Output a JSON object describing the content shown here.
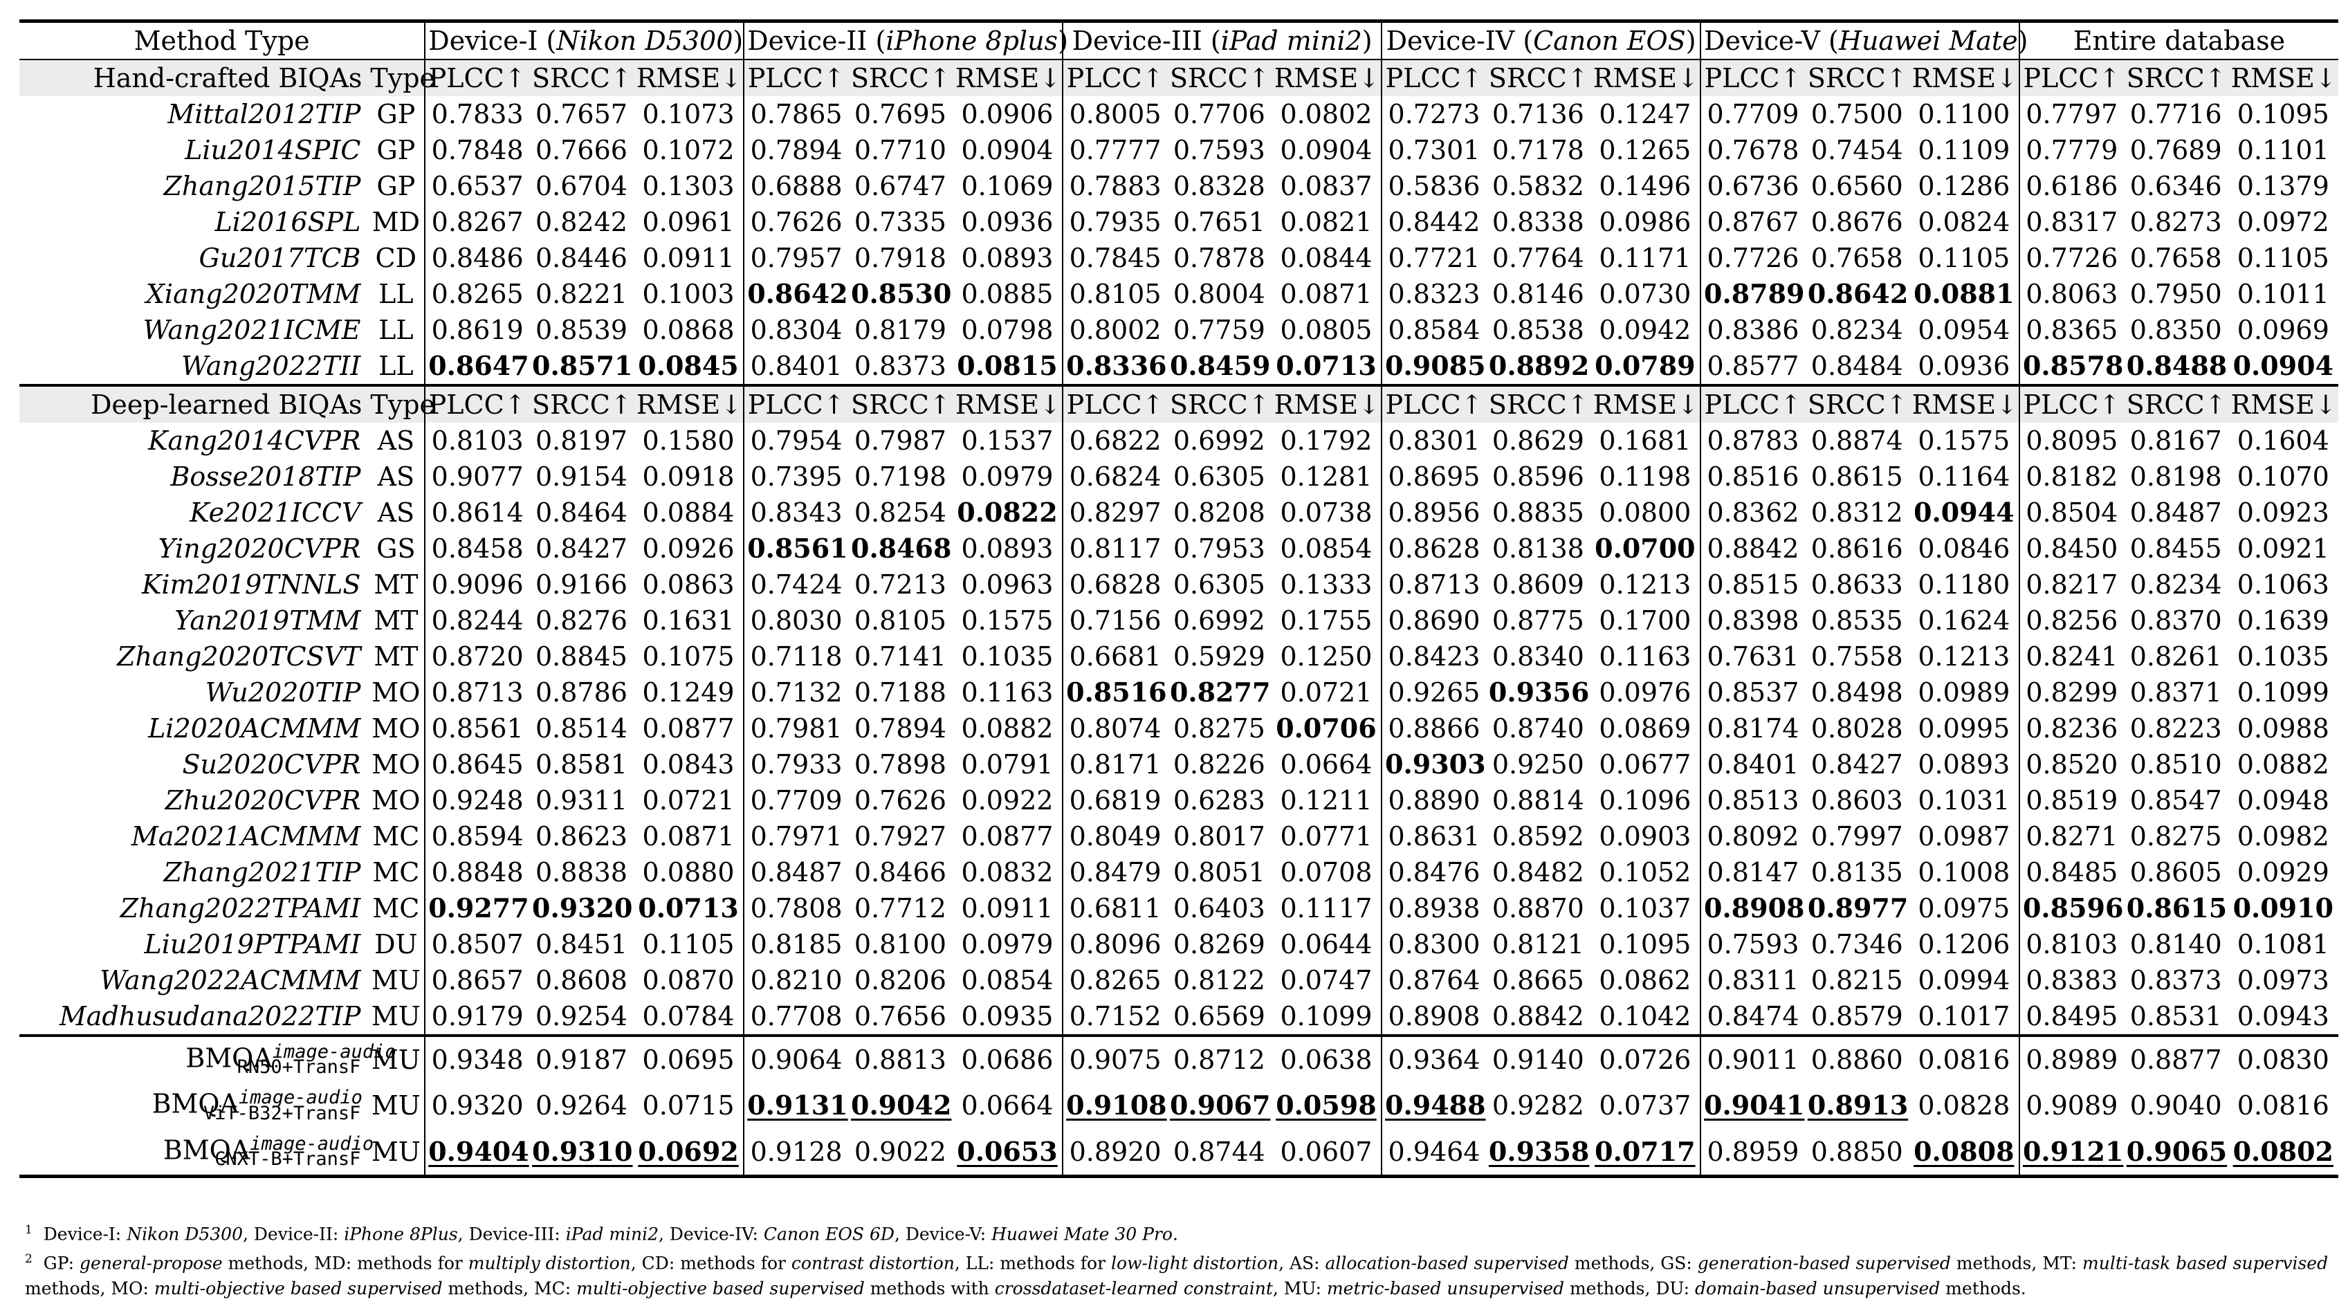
{
  "header": {
    "method_type": "Method Type",
    "devices": [
      {
        "label": "Device-I",
        "model": "Nikon D5300"
      },
      {
        "label": "Device-II",
        "model": "iPhone 8plus"
      },
      {
        "label": "Device-III",
        "model": "iPad mini2"
      },
      {
        "label": "Device-IV",
        "model": "Canon EOS"
      },
      {
        "label": "Device-V",
        "model": "Huawei Mate"
      }
    ],
    "entire": "Entire database"
  },
  "metric_labels": [
    "PLCC↑",
    "SRCC↑",
    "RMSE↓"
  ],
  "type_label": "Type",
  "sections": [
    {
      "title": "Hand-crafted BIQAs",
      "rows": [
        {
          "name": "Mittal2012TIP",
          "type": "GP",
          "vals": [
            "0.7833",
            "0.7657",
            "0.1073",
            "0.7865",
            "0.7695",
            "0.0906",
            "0.8005",
            "0.7706",
            "0.0802",
            "0.7273",
            "0.7136",
            "0.1247",
            "0.7709",
            "0.7500",
            "0.1100",
            "0.7797",
            "0.7716",
            "0.1095"
          ],
          "bold": [],
          "ul": []
        },
        {
          "name": "Liu2014SPIC",
          "type": "GP",
          "vals": [
            "0.7848",
            "0.7666",
            "0.1072",
            "0.7894",
            "0.7710",
            "0.0904",
            "0.7777",
            "0.7593",
            "0.0904",
            "0.7301",
            "0.7178",
            "0.1265",
            "0.7678",
            "0.7454",
            "0.1109",
            "0.7779",
            "0.7689",
            "0.1101"
          ],
          "bold": [],
          "ul": []
        },
        {
          "name": "Zhang2015TIP",
          "type": "GP",
          "vals": [
            "0.6537",
            "0.6704",
            "0.1303",
            "0.6888",
            "0.6747",
            "0.1069",
            "0.7883",
            "0.8328",
            "0.0837",
            "0.5836",
            "0.5832",
            "0.1496",
            "0.6736",
            "0.6560",
            "0.1286",
            "0.6186",
            "0.6346",
            "0.1379"
          ],
          "bold": [],
          "ul": []
        },
        {
          "name": "Li2016SPL",
          "type": "MD",
          "vals": [
            "0.8267",
            "0.8242",
            "0.0961",
            "0.7626",
            "0.7335",
            "0.0936",
            "0.7935",
            "0.7651",
            "0.0821",
            "0.8442",
            "0.8338",
            "0.0986",
            "0.8767",
            "0.8676",
            "0.0824",
            "0.8317",
            "0.8273",
            "0.0972"
          ],
          "bold": [],
          "ul": []
        },
        {
          "name": "Gu2017TCB",
          "type": "CD",
          "vals": [
            "0.8486",
            "0.8446",
            "0.0911",
            "0.7957",
            "0.7918",
            "0.0893",
            "0.7845",
            "0.7878",
            "0.0844",
            "0.7721",
            "0.7764",
            "0.1171",
            "0.7726",
            "0.7658",
            "0.1105",
            "0.7726",
            "0.7658",
            "0.1105"
          ],
          "bold": [],
          "ul": []
        },
        {
          "name": "Xiang2020TMM",
          "type": "LL",
          "vals": [
            "0.8265",
            "0.8221",
            "0.1003",
            "0.8642",
            "0.8530",
            "0.0885",
            "0.8105",
            "0.8004",
            "0.0871",
            "0.8323",
            "0.8146",
            "0.0730",
            "0.8789",
            "0.8642",
            "0.0881",
            "0.8063",
            "0.7950",
            "0.1011"
          ],
          "bold": [
            3,
            4,
            12,
            13,
            14
          ],
          "ul": []
        },
        {
          "name": "Wang2021ICME",
          "type": "LL",
          "vals": [
            "0.8619",
            "0.8539",
            "0.0868",
            "0.8304",
            "0.8179",
            "0.0798",
            "0.8002",
            "0.7759",
            "0.0805",
            "0.8584",
            "0.8538",
            "0.0942",
            "0.8386",
            "0.8234",
            "0.0954",
            "0.8365",
            "0.8350",
            "0.0969"
          ],
          "bold": [],
          "ul": []
        },
        {
          "name": "Wang2022TII",
          "type": "LL",
          "vals": [
            "0.8647",
            "0.8571",
            "0.0845",
            "0.8401",
            "0.8373",
            "0.0815",
            "0.8336",
            "0.8459",
            "0.0713",
            "0.9085",
            "0.8892",
            "0.0789",
            "0.8577",
            "0.8484",
            "0.0936",
            "0.8578",
            "0.8488",
            "0.0904"
          ],
          "bold": [
            0,
            1,
            2,
            5,
            6,
            7,
            8,
            9,
            10,
            11,
            15,
            16,
            17
          ],
          "ul": []
        }
      ]
    },
    {
      "title": "Deep-learned BIQAs",
      "rows": [
        {
          "name": "Kang2014CVPR",
          "type": "AS",
          "vals": [
            "0.8103",
            "0.8197",
            "0.1580",
            "0.7954",
            "0.7987",
            "0.1537",
            "0.6822",
            "0.6992",
            "0.1792",
            "0.8301",
            "0.8629",
            "0.1681",
            "0.8783",
            "0.8874",
            "0.1575",
            "0.8095",
            "0.8167",
            "0.1604"
          ],
          "bold": [],
          "ul": []
        },
        {
          "name": "Bosse2018TIP",
          "type": "AS",
          "vals": [
            "0.9077",
            "0.9154",
            "0.0918",
            "0.7395",
            "0.7198",
            "0.0979",
            "0.6824",
            "0.6305",
            "0.1281",
            "0.8695",
            "0.8596",
            "0.1198",
            "0.8516",
            "0.8615",
            "0.1164",
            "0.8182",
            "0.8198",
            "0.1070"
          ],
          "bold": [],
          "ul": []
        },
        {
          "name": "Ke2021ICCV",
          "type": "AS",
          "vals": [
            "0.8614",
            "0.8464",
            "0.0884",
            "0.8343",
            "0.8254",
            "0.0822",
            "0.8297",
            "0.8208",
            "0.0738",
            "0.8956",
            "0.8835",
            "0.0800",
            "0.8362",
            "0.8312",
            "0.0944",
            "0.8504",
            "0.8487",
            "0.0923"
          ],
          "bold": [
            5,
            14
          ],
          "ul": []
        },
        {
          "name": "Ying2020CVPR",
          "type": "GS",
          "vals": [
            "0.8458",
            "0.8427",
            "0.0926",
            "0.8561",
            "0.8468",
            "0.0893",
            "0.8117",
            "0.7953",
            "0.0854",
            "0.8628",
            "0.8138",
            "0.0700",
            "0.8842",
            "0.8616",
            "0.0846",
            "0.8450",
            "0.8455",
            "0.0921"
          ],
          "bold": [
            3,
            4,
            11
          ],
          "ul": []
        },
        {
          "name": "Kim2019TNNLS",
          "type": "MT",
          "vals": [
            "0.9096",
            "0.9166",
            "0.0863",
            "0.7424",
            "0.7213",
            "0.0963",
            "0.6828",
            "0.6305",
            "0.1333",
            "0.8713",
            "0.8609",
            "0.1213",
            "0.8515",
            "0.8633",
            "0.1180",
            "0.8217",
            "0.8234",
            "0.1063"
          ],
          "bold": [],
          "ul": []
        },
        {
          "name": "Yan2019TMM",
          "type": "MT",
          "vals": [
            "0.8244",
            "0.8276",
            "0.1631",
            "0.8030",
            "0.8105",
            "0.1575",
            "0.7156",
            "0.6992",
            "0.1755",
            "0.8690",
            "0.8775",
            "0.1700",
            "0.8398",
            "0.8535",
            "0.1624",
            "0.8256",
            "0.8370",
            "0.1639"
          ],
          "bold": [],
          "ul": []
        },
        {
          "name": "Zhang2020TCSVT",
          "type": "MT",
          "vals": [
            "0.8720",
            "0.8845",
            "0.1075",
            "0.7118",
            "0.7141",
            "0.1035",
            "0.6681",
            "0.5929",
            "0.1250",
            "0.8423",
            "0.8340",
            "0.1163",
            "0.7631",
            "0.7558",
            "0.1213",
            "0.8241",
            "0.8261",
            "0.1035"
          ],
          "bold": [],
          "ul": []
        },
        {
          "name": "Wu2020TIP",
          "type": "MO",
          "vals": [
            "0.8713",
            "0.8786",
            "0.1249",
            "0.7132",
            "0.7188",
            "0.1163",
            "0.8516",
            "0.8277",
            "0.0721",
            "0.9265",
            "0.9356",
            "0.0976",
            "0.8537",
            "0.8498",
            "0.0989",
            "0.8299",
            "0.8371",
            "0.1099"
          ],
          "bold": [
            6,
            7,
            10
          ],
          "ul": []
        },
        {
          "name": "Li2020ACMMM",
          "type": "MO",
          "vals": [
            "0.8561",
            "0.8514",
            "0.0877",
            "0.7981",
            "0.7894",
            "0.0882",
            "0.8074",
            "0.8275",
            "0.0706",
            "0.8866",
            "0.8740",
            "0.0869",
            "0.8174",
            "0.8028",
            "0.0995",
            "0.8236",
            "0.8223",
            "0.0988"
          ],
          "bold": [
            8
          ],
          "ul": []
        },
        {
          "name": "Su2020CVPR",
          "type": "MO",
          "vals": [
            "0.8645",
            "0.8581",
            "0.0843",
            "0.7933",
            "0.7898",
            "0.0791",
            "0.8171",
            "0.8226",
            "0.0664",
            "0.9303",
            "0.9250",
            "0.0677",
            "0.8401",
            "0.8427",
            "0.0893",
            "0.8520",
            "0.8510",
            "0.0882"
          ],
          "bold": [
            9
          ],
          "ul": []
        },
        {
          "name": "Zhu2020CVPR",
          "type": "MO",
          "vals": [
            "0.9248",
            "0.9311",
            "0.0721",
            "0.7709",
            "0.7626",
            "0.0922",
            "0.6819",
            "0.6283",
            "0.1211",
            "0.8890",
            "0.8814",
            "0.1096",
            "0.8513",
            "0.8603",
            "0.1031",
            "0.8519",
            "0.8547",
            "0.0948"
          ],
          "bold": [],
          "ul": []
        },
        {
          "name": "Ma2021ACMMM",
          "type": "MC",
          "vals": [
            "0.8594",
            "0.8623",
            "0.0871",
            "0.7971",
            "0.7927",
            "0.0877",
            "0.8049",
            "0.8017",
            "0.0771",
            "0.8631",
            "0.8592",
            "0.0903",
            "0.8092",
            "0.7997",
            "0.0987",
            "0.8271",
            "0.8275",
            "0.0982"
          ],
          "bold": [],
          "ul": []
        },
        {
          "name": "Zhang2021TIP",
          "type": "MC",
          "vals": [
            "0.8848",
            "0.8838",
            "0.0880",
            "0.8487",
            "0.8466",
            "0.0832",
            "0.8479",
            "0.8051",
            "0.0708",
            "0.8476",
            "0.8482",
            "0.1052",
            "0.8147",
            "0.8135",
            "0.1008",
            "0.8485",
            "0.8605",
            "0.0929"
          ],
          "bold": [],
          "ul": []
        },
        {
          "name": "Zhang2022TPAMI",
          "type": "MC",
          "vals": [
            "0.9277",
            "0.9320",
            "0.0713",
            "0.7808",
            "0.7712",
            "0.0911",
            "0.6811",
            "0.6403",
            "0.1117",
            "0.8938",
            "0.8870",
            "0.1037",
            "0.8908",
            "0.8977",
            "0.0975",
            "0.8596",
            "0.8615",
            "0.0910"
          ],
          "bold": [
            0,
            1,
            2,
            12,
            13,
            15,
            16,
            17
          ],
          "ul": []
        },
        {
          "name": "Liu2019PTPAMI",
          "type": "DU",
          "vals": [
            "0.8507",
            "0.8451",
            "0.1105",
            "0.8185",
            "0.8100",
            "0.0979",
            "0.8096",
            "0.8269",
            "0.0644",
            "0.8300",
            "0.8121",
            "0.1095",
            "0.7593",
            "0.7346",
            "0.1206",
            "0.8103",
            "0.8140",
            "0.1081"
          ],
          "bold": [],
          "ul": []
        },
        {
          "name": "Wang2022ACMMM",
          "type": "MU",
          "vals": [
            "0.8657",
            "0.8608",
            "0.0870",
            "0.8210",
            "0.8206",
            "0.0854",
            "0.8265",
            "0.8122",
            "0.0747",
            "0.8764",
            "0.8665",
            "0.0862",
            "0.8311",
            "0.8215",
            "0.0994",
            "0.8383",
            "0.8373",
            "0.0973"
          ],
          "bold": [],
          "ul": []
        },
        {
          "name": "Madhusudana2022TIP",
          "type": "MU",
          "vals": [
            "0.9179",
            "0.9254",
            "0.0784",
            "0.7708",
            "0.7656",
            "0.0935",
            "0.7152",
            "0.6569",
            "0.1099",
            "0.8908",
            "0.8842",
            "0.1042",
            "0.8474",
            "0.8579",
            "0.1017",
            "0.8495",
            "0.8531",
            "0.0943"
          ],
          "bold": [],
          "ul": []
        }
      ]
    }
  ],
  "bmqa": {
    "base": "BMQA",
    "sup": "image-audio",
    "rows": [
      {
        "sub": "RN50+TransF",
        "type": "MU",
        "vals": [
          "0.9348",
          "0.9187",
          "0.0695",
          "0.9064",
          "0.8813",
          "0.0686",
          "0.9075",
          "0.8712",
          "0.0638",
          "0.9364",
          "0.9140",
          "0.0726",
          "0.9011",
          "0.8860",
          "0.0816",
          "0.8989",
          "0.8877",
          "0.0830"
        ],
        "bold": [],
        "ul": []
      },
      {
        "sub": "ViT-B32+TransF",
        "type": "MU",
        "vals": [
          "0.9320",
          "0.9264",
          "0.0715",
          "0.9131",
          "0.9042",
          "0.0664",
          "0.9108",
          "0.9067",
          "0.0598",
          "0.9488",
          "0.9282",
          "0.0737",
          "0.9041",
          "0.8913",
          "0.0828",
          "0.9089",
          "0.9040",
          "0.0816"
        ],
        "bold": [],
        "ul": [
          3,
          4,
          6,
          7,
          8,
          9,
          12,
          13
        ]
      },
      {
        "sub": "CNXT-B+TransF",
        "type": "MU",
        "vals": [
          "0.9404",
          "0.9310",
          "0.0692",
          "0.9128",
          "0.9022",
          "0.0653",
          "0.8920",
          "0.8744",
          "0.0607",
          "0.9464",
          "0.9358",
          "0.0717",
          "0.8959",
          "0.8850",
          "0.0808",
          "0.9121",
          "0.9065",
          "0.0802"
        ],
        "bold": [],
        "ul": [
          0,
          1,
          2,
          5,
          10,
          11,
          14,
          15,
          16,
          17
        ]
      }
    ]
  },
  "notes": {
    "n1": {
      "num": "1",
      "parts": [
        {
          "t": "Device-I: ",
          "i": false
        },
        {
          "t": "Nikon D5300",
          "i": true
        },
        {
          "t": ", Device-II: ",
          "i": false
        },
        {
          "t": "iPhone 8Plus",
          "i": true
        },
        {
          "t": ", Device-III: ",
          "i": false
        },
        {
          "t": "iPad mini2",
          "i": true
        },
        {
          "t": ", Device-IV: ",
          "i": false
        },
        {
          "t": "Canon EOS 6D",
          "i": true
        },
        {
          "t": ", Device-V: ",
          "i": false
        },
        {
          "t": "Huawei Mate 30 Pro",
          "i": true
        },
        {
          "t": ".",
          "i": false
        }
      ]
    },
    "n2": {
      "num": "2",
      "parts": [
        {
          "t": "GP: ",
          "i": false
        },
        {
          "t": "general-propose",
          "i": true
        },
        {
          "t": " methods, MD: methods for ",
          "i": false
        },
        {
          "t": "multiply distortion",
          "i": true
        },
        {
          "t": ", CD: methods for ",
          "i": false
        },
        {
          "t": "contrast distortion",
          "i": true
        },
        {
          "t": ", LL: methods for ",
          "i": false
        },
        {
          "t": "low-light distortion",
          "i": true
        },
        {
          "t": ", AS: ",
          "i": false
        },
        {
          "t": "allocation-based supervised",
          "i": true
        },
        {
          "t": " methods, GS: ",
          "i": false
        },
        {
          "t": "generation-based supervised",
          "i": true
        },
        {
          "t": " methods, MT: ",
          "i": false
        },
        {
          "t": "multi-task based supervised",
          "i": true
        },
        {
          "t": " methods, MO: ",
          "i": false
        },
        {
          "t": "multi-objective based supervised",
          "i": true
        },
        {
          "t": " methods, MC: ",
          "i": false
        },
        {
          "t": "multi-objective based supervised",
          "i": true
        },
        {
          "t": " methods with ",
          "i": false
        },
        {
          "t": "crossdataset-learned constraint",
          "i": true
        },
        {
          "t": ", MU: ",
          "i": false
        },
        {
          "t": "metric-based unsupervised",
          "i": true
        },
        {
          "t": " methods, DU: ",
          "i": false
        },
        {
          "t": "domain-based unsupervised",
          "i": true
        },
        {
          "t": " methods.",
          "i": false
        }
      ]
    }
  }
}
